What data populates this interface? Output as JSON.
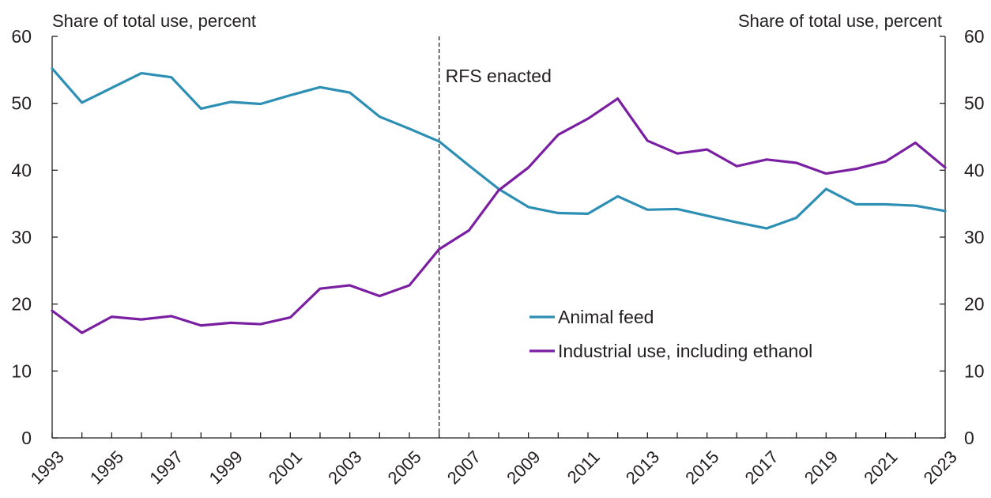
{
  "chart_data": {
    "type": "line",
    "y_left_label": "Share of total use, percent",
    "y_right_label": "Share of total use, percent",
    "ylim": [
      0,
      60
    ],
    "y_ticks": [
      0,
      10,
      20,
      30,
      40,
      50,
      60
    ],
    "xlim": [
      1993,
      2023
    ],
    "x_tick_labels": [
      "1993",
      "1995",
      "1997",
      "1999",
      "2001",
      "2003",
      "2005",
      "2007",
      "2009",
      "2011",
      "2013",
      "2015",
      "2017",
      "2019",
      "2021",
      "2023"
    ],
    "grid": false,
    "legend_position": "center-right",
    "annotation": {
      "text": "RFS enacted",
      "x": 2006
    },
    "x": [
      1993,
      1994,
      1995,
      1996,
      1997,
      1998,
      1999,
      2000,
      2001,
      2002,
      2003,
      2004,
      2005,
      2006,
      2007,
      2008,
      2009,
      2010,
      2011,
      2012,
      2013,
      2014,
      2015,
      2016,
      2017,
      2018,
      2019,
      2020,
      2021,
      2022,
      2023
    ],
    "series": [
      {
        "name": "Animal feed",
        "color": "#2e8fb5",
        "values": [
          55.2,
          50.1,
          52.3,
          54.5,
          53.9,
          49.2,
          50.2,
          49.9,
          51.2,
          52.4,
          51.6,
          48.0,
          46.2,
          44.3,
          40.7,
          37.2,
          34.5,
          33.6,
          33.5,
          36.1,
          34.1,
          34.2,
          33.2,
          32.2,
          31.3,
          32.9,
          37.2,
          34.9,
          34.9,
          34.7,
          33.9
        ]
      },
      {
        "name": "Industrial use, including ethanol",
        "color": "#7a1fa2",
        "values": [
          19.0,
          15.7,
          18.1,
          17.7,
          18.2,
          16.8,
          17.2,
          17.0,
          18.0,
          22.3,
          22.8,
          21.2,
          22.8,
          28.2,
          31.0,
          37.0,
          40.4,
          45.3,
          47.7,
          50.7,
          44.4,
          42.5,
          43.1,
          40.6,
          41.6,
          41.1,
          39.5,
          40.2,
          41.3,
          44.1,
          40.4
        ]
      }
    ]
  }
}
